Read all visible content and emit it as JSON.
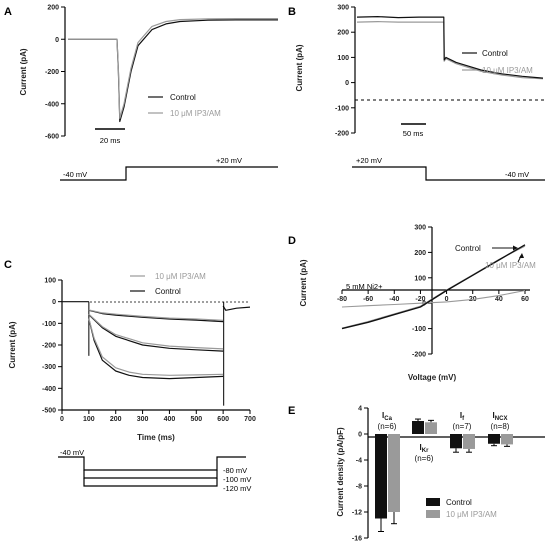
{
  "colors": {
    "control": "#111111",
    "treated": "#9a9a9a",
    "axis": "#000000"
  },
  "chart_data": [
    {
      "panel": "A",
      "type": "line",
      "ylabel": "Current (pA)",
      "yticks": [
        "200",
        "0",
        "-200",
        "-400",
        "-600"
      ],
      "ylim": [
        -600,
        200
      ],
      "scalebar": "20 ms",
      "legend": [
        "Control",
        "10 μM IP3/AM"
      ],
      "protocol": {
        "hold": "-40 mV",
        "step": "+20 mV"
      },
      "series": [
        {
          "name": "Control",
          "t": [
            0,
            10,
            20,
            30,
            35,
            36,
            37,
            40,
            45,
            50,
            60,
            70,
            80,
            100,
            120,
            150
          ],
          "y": [
            0,
            0,
            0,
            0,
            0,
            -200,
            -510,
            -420,
            -200,
            -40,
            60,
            95,
            110,
            118,
            120,
            120
          ]
        },
        {
          "name": "10 μM IP3/AM",
          "t": [
            0,
            10,
            20,
            30,
            35,
            36,
            37,
            40,
            45,
            50,
            60,
            70,
            80,
            100,
            120,
            150
          ],
          "y": [
            0,
            0,
            0,
            0,
            0,
            -190,
            -490,
            -400,
            -180,
            -20,
            80,
            110,
            122,
            126,
            128,
            128
          ]
        }
      ]
    },
    {
      "panel": "B",
      "type": "line",
      "ylabel": "Current (pA)",
      "yticks": [
        "300",
        "200",
        "100",
        "0",
        "-100",
        "-200"
      ],
      "ylim": [
        -200,
        300
      ],
      "scalebar": "50 ms",
      "legend": [
        "Control",
        "10 μM IP3/AM"
      ],
      "protocol": {
        "hold": "+20 mV",
        "step": "-40 mV"
      },
      "series": [
        {
          "name": "Control",
          "t": [
            0,
            50,
            100,
            150,
            210,
            211,
            215,
            240,
            270,
            300,
            350,
            400,
            450
          ],
          "y": [
            260,
            262,
            258,
            260,
            260,
            90,
            100,
            80,
            65,
            50,
            35,
            25,
            18
          ]
        },
        {
          "name": "10 μM IP3/AM",
          "t": [
            0,
            50,
            100,
            150,
            210,
            211,
            215,
            240,
            270,
            300,
            350,
            400,
            450
          ],
          "y": [
            240,
            242,
            240,
            240,
            240,
            85,
            95,
            75,
            60,
            45,
            30,
            20,
            15
          ]
        }
      ]
    },
    {
      "panel": "C",
      "type": "line",
      "ylabel": "Current (pA)",
      "xlabel": "Time (ms)",
      "xticks": [
        "0",
        "100",
        "200",
        "300",
        "400",
        "500",
        "600",
        "700"
      ],
      "xlim": [
        0,
        700
      ],
      "yticks": [
        "100",
        "0",
        "-100",
        "-200",
        "-300",
        "-400",
        "-500"
      ],
      "ylim": [
        -500,
        100
      ],
      "legend": [
        "10 μM IP3/AM",
        "Control"
      ],
      "protocol": {
        "hold": "-40 mV",
        "steps": [
          "-80 mV",
          "-100 mV",
          "-120 mV"
        ]
      },
      "series": [
        {
          "name": "Control -80",
          "t": [
            100,
            150,
            200,
            300,
            400,
            500,
            600
          ],
          "y": [
            -40,
            -55,
            -62,
            -72,
            -80,
            -85,
            -92
          ]
        },
        {
          "name": "IP3 -80",
          "t": [
            100,
            150,
            200,
            300,
            400,
            500,
            600
          ],
          "y": [
            -38,
            -52,
            -58,
            -68,
            -76,
            -80,
            -86
          ]
        },
        {
          "name": "Control -100",
          "t": [
            100,
            150,
            200,
            300,
            400,
            500,
            600
          ],
          "y": [
            -60,
            -120,
            -160,
            -200,
            -215,
            -222,
            -228
          ]
        },
        {
          "name": "IP3 -100",
          "t": [
            100,
            150,
            200,
            300,
            400,
            500,
            600
          ],
          "y": [
            -58,
            -115,
            -152,
            -190,
            -205,
            -212,
            -218
          ]
        },
        {
          "name": "Control -120",
          "t": [
            100,
            120,
            150,
            200,
            250,
            300,
            400,
            500,
            600
          ],
          "y": [
            -80,
            -180,
            -270,
            -320,
            -340,
            -350,
            -355,
            -350,
            -345
          ]
        },
        {
          "name": "IP3 -120",
          "t": [
            100,
            120,
            150,
            200,
            250,
            300,
            400,
            500,
            600
          ],
          "y": [
            -78,
            -170,
            -255,
            -305,
            -325,
            -335,
            -340,
            -338,
            -335
          ]
        }
      ]
    },
    {
      "panel": "D",
      "type": "line",
      "ylabel": "Current (pA)",
      "xlabel": "Voltage (mV)",
      "xticks": [
        "-80",
        "-60",
        "-40",
        "-20",
        "0",
        "20",
        "40",
        "60"
      ],
      "xlim": [
        -80,
        60
      ],
      "yticks": [
        "300",
        "200",
        "100",
        "0",
        "-100",
        "-200"
      ],
      "ylim": [
        -200,
        300
      ],
      "labels": [
        "Control",
        "10 μM IP3/AM",
        "5 mM Ni2+"
      ],
      "series": [
        {
          "name": "Control",
          "x": [
            -80,
            -60,
            -40,
            -20,
            0,
            20,
            40,
            60
          ],
          "y": [
            -100,
            -75,
            -45,
            -15,
            50,
            110,
            170,
            230
          ]
        },
        {
          "name": "10 μM IP3/AM",
          "x": [
            -80,
            -60,
            -40,
            -20,
            0,
            20,
            40,
            60
          ],
          "y": [
            -98,
            -72,
            -42,
            -12,
            52,
            112,
            172,
            225
          ]
        },
        {
          "name": "5 mM Ni2+",
          "x": [
            -80,
            -60,
            -40,
            -20,
            0,
            20,
            40,
            60
          ],
          "y": [
            -15,
            -10,
            -5,
            0,
            5,
            15,
            30,
            50
          ]
        }
      ]
    },
    {
      "panel": "E",
      "type": "bar",
      "ylabel": "Current density (pA/pF)",
      "yticks": [
        "4",
        "0",
        "-4",
        "-8",
        "-12",
        "-16"
      ],
      "ylim": [
        -16,
        4
      ],
      "categories": [
        {
          "name": "I",
          "sub": "Ca",
          "n": "(n=6)"
        },
        {
          "name": "I",
          "sub": "Kr",
          "n": "(n=6)"
        },
        {
          "name": "I",
          "sub": "f",
          "n": "(n=7)"
        },
        {
          "name": "I",
          "sub": "NCX",
          "n": "(n=8)"
        }
      ],
      "series": [
        {
          "name": "Control",
          "values": [
            -13.0,
            2.0,
            -2.2,
            -1.5
          ],
          "errors": [
            2.0,
            0.3,
            0.6,
            0.3
          ]
        },
        {
          "name": "10 μM IP3/AM",
          "values": [
            -12.0,
            1.8,
            -2.3,
            -1.6
          ],
          "errors": [
            1.8,
            0.3,
            0.5,
            0.3
          ]
        }
      ]
    }
  ]
}
